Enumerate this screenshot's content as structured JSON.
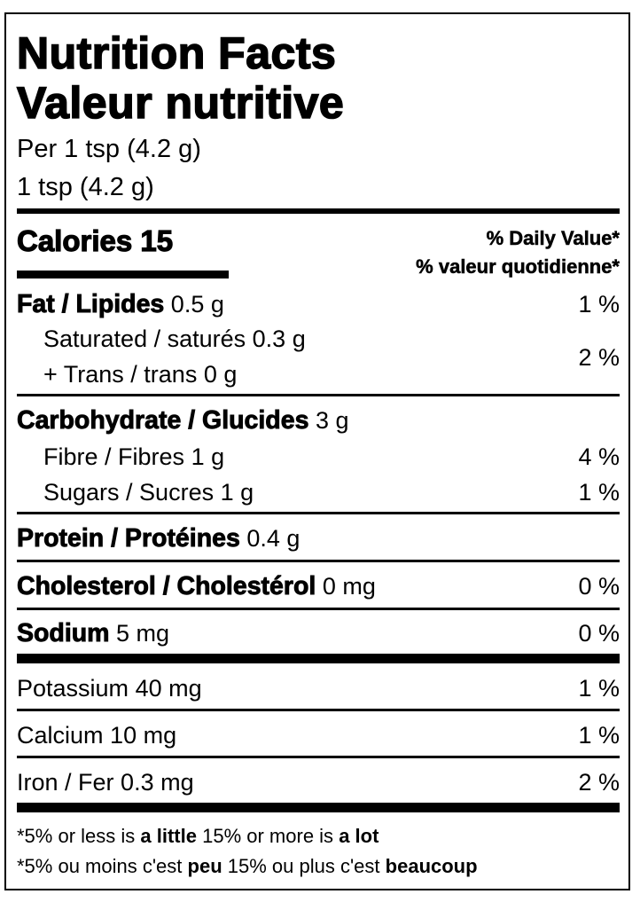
{
  "header": {
    "title_en": "Nutrition Facts",
    "title_fr": "Valeur nutritive",
    "serving_1": "Per 1 tsp (4.2 g)",
    "serving_2": "1 tsp (4.2 g)"
  },
  "calories": {
    "label": "Calories",
    "value": "15"
  },
  "daily_value": {
    "en": "% Daily Value*",
    "fr": "% valeur quotidienne*"
  },
  "nutrients": {
    "fat": {
      "label": "Fat / Lipides",
      "amount": "0.5 g",
      "dv": "1 %"
    },
    "saturated": {
      "label": "Saturated / saturés",
      "amount": "0.3 g"
    },
    "trans": {
      "label": "+ Trans / trans",
      "amount": "0 g"
    },
    "sat_trans_dv": "2 %",
    "carbohydrate": {
      "label": "Carbohydrate / Glucides",
      "amount": "3 g"
    },
    "fibre": {
      "label": "Fibre / Fibres",
      "amount": "1 g",
      "dv": "4 %"
    },
    "sugars": {
      "label": "Sugars / Sucres",
      "amount": "1 g",
      "dv": "1 %"
    },
    "protein": {
      "label": "Protein / Protéines",
      "amount": "0.4 g"
    },
    "cholesterol": {
      "label": "Cholesterol / Cholestérol",
      "amount": "0 mg",
      "dv": "0 %"
    },
    "sodium": {
      "label": "Sodium",
      "amount": "5 mg",
      "dv": "0 %"
    },
    "potassium": {
      "label": "Potassium",
      "amount": "40 mg",
      "dv": "1 %"
    },
    "calcium": {
      "label": "Calcium",
      "amount": "10 mg",
      "dv": "1 %"
    },
    "iron": {
      "label": "Iron / Fer",
      "amount": "0.3 mg",
      "dv": "2 %"
    }
  },
  "footnote": {
    "en": {
      "a": "*5% or less is",
      "b": "a little",
      "c": "15% or more is",
      "d": "a lot"
    },
    "fr": {
      "a": "*5% ou moins c'est",
      "b": "peu",
      "c": "15% ou plus c'est",
      "d": "beaucoup"
    }
  }
}
